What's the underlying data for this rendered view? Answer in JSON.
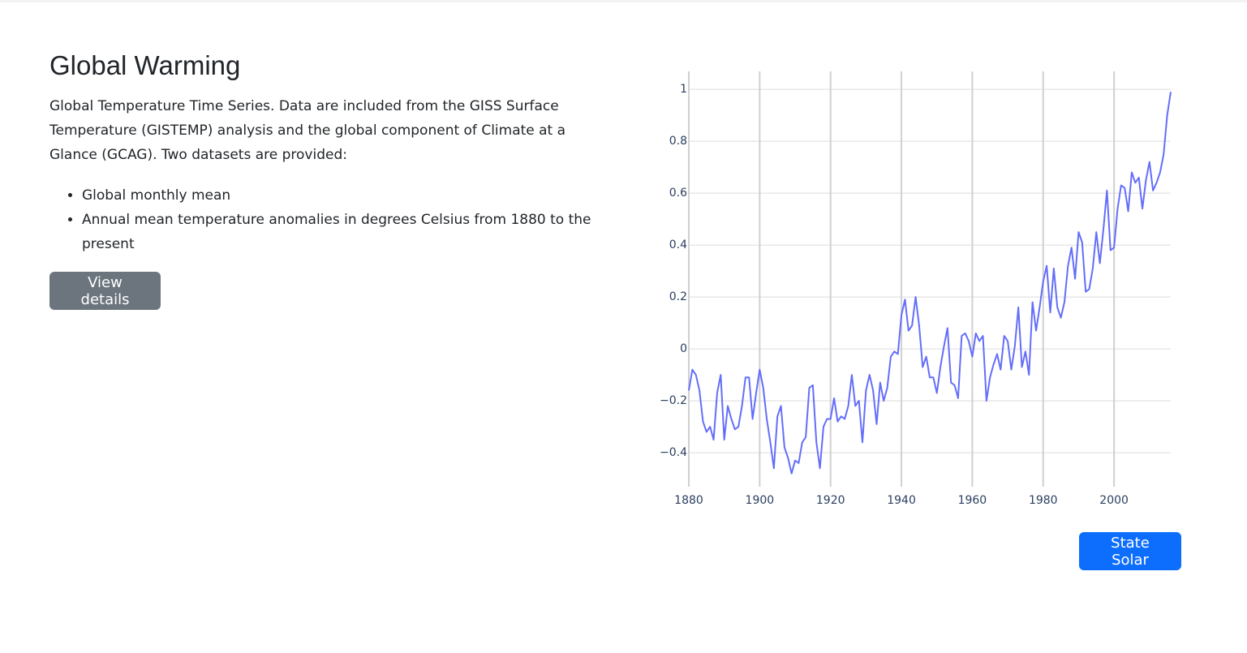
{
  "header": {
    "title": "Global Warming"
  },
  "description": "Global Temperature Time Series. Data are included from the GISS Surface Temperature (GISTEMP) analysis and the global component of Climate at a Glance (GCAG). Two datasets are provided:",
  "list": [
    "Global monthly mean",
    "Annual mean temperature anomalies in degrees Celsius from 1880 to the present"
  ],
  "buttons": {
    "details": "View details",
    "state": "State Solar"
  },
  "chart_data": {
    "type": "line",
    "x": [
      1880,
      1881,
      1882,
      1883,
      1884,
      1885,
      1886,
      1887,
      1888,
      1889,
      1890,
      1891,
      1892,
      1893,
      1894,
      1895,
      1896,
      1897,
      1898,
      1899,
      1900,
      1901,
      1902,
      1903,
      1904,
      1905,
      1906,
      1907,
      1908,
      1909,
      1910,
      1911,
      1912,
      1913,
      1914,
      1915,
      1916,
      1917,
      1918,
      1919,
      1920,
      1921,
      1922,
      1923,
      1924,
      1925,
      1926,
      1927,
      1928,
      1929,
      1930,
      1931,
      1932,
      1933,
      1934,
      1935,
      1936,
      1937,
      1938,
      1939,
      1940,
      1941,
      1942,
      1943,
      1944,
      1945,
      1946,
      1947,
      1948,
      1949,
      1950,
      1951,
      1952,
      1953,
      1954,
      1955,
      1956,
      1957,
      1958,
      1959,
      1960,
      1961,
      1962,
      1963,
      1964,
      1965,
      1966,
      1967,
      1968,
      1969,
      1970,
      1971,
      1972,
      1973,
      1974,
      1975,
      1976,
      1977,
      1978,
      1979,
      1980,
      1981,
      1982,
      1983,
      1984,
      1985,
      1986,
      1987,
      1988,
      1989,
      1990,
      1991,
      1992,
      1993,
      1994,
      1995,
      1996,
      1997,
      1998,
      1999,
      2000,
      2001,
      2002,
      2003,
      2004,
      2005,
      2006,
      2007,
      2008,
      2009,
      2010,
      2011,
      2012,
      2013,
      2014,
      2015,
      2016
    ],
    "series": [
      {
        "color": "#636efa",
        "values": [
          -0.16,
          -0.08,
          -0.1,
          -0.16,
          -0.28,
          -0.32,
          -0.3,
          -0.35,
          -0.17,
          -0.1,
          -0.35,
          -0.22,
          -0.27,
          -0.31,
          -0.3,
          -0.22,
          -0.11,
          -0.11,
          -0.27,
          -0.17,
          -0.08,
          -0.15,
          -0.27,
          -0.36,
          -0.46,
          -0.26,
          -0.22,
          -0.38,
          -0.42,
          -0.48,
          -0.43,
          -0.44,
          -0.36,
          -0.34,
          -0.15,
          -0.14,
          -0.36,
          -0.46,
          -0.3,
          -0.27,
          -0.27,
          -0.19,
          -0.28,
          -0.26,
          -0.27,
          -0.22,
          -0.1,
          -0.22,
          -0.2,
          -0.36,
          -0.16,
          -0.1,
          -0.16,
          -0.29,
          -0.13,
          -0.2,
          -0.15,
          -0.03,
          -0.01,
          -0.02,
          0.13,
          0.19,
          0.07,
          0.09,
          0.2,
          0.09,
          -0.07,
          -0.03,
          -0.11,
          -0.11,
          -0.17,
          -0.07,
          0.01,
          0.08,
          -0.13,
          -0.14,
          -0.19,
          0.05,
          0.06,
          0.03,
          -0.03,
          0.06,
          0.03,
          0.05,
          -0.2,
          -0.11,
          -0.06,
          -0.02,
          -0.08,
          0.05,
          0.03,
          -0.08,
          0.01,
          0.16,
          -0.07,
          -0.01,
          -0.1,
          0.18,
          0.07,
          0.16,
          0.26,
          0.32,
          0.14,
          0.31,
          0.16,
          0.12,
          0.18,
          0.32,
          0.39,
          0.27,
          0.45,
          0.41,
          0.22,
          0.23,
          0.31,
          0.45,
          0.33,
          0.46,
          0.61,
          0.38,
          0.39,
          0.54,
          0.63,
          0.62,
          0.53,
          0.68,
          0.64,
          0.66,
          0.54,
          0.65,
          0.72,
          0.61,
          0.64,
          0.68,
          0.75,
          0.9,
          0.99
        ]
      }
    ],
    "xlim": [
      1880,
      2016
    ],
    "ylim": [
      -0.531,
      1.069
    ],
    "xticks": [
      1880,
      1900,
      1920,
      1940,
      1960,
      1980,
      2000
    ],
    "yticks": [
      {
        "value": -0.4,
        "label": "−0.4"
      },
      {
        "value": -0.2,
        "label": "−0.2"
      },
      0,
      0.2,
      0.4,
      0.6,
      0.8,
      1
    ],
    "grid": true
  }
}
